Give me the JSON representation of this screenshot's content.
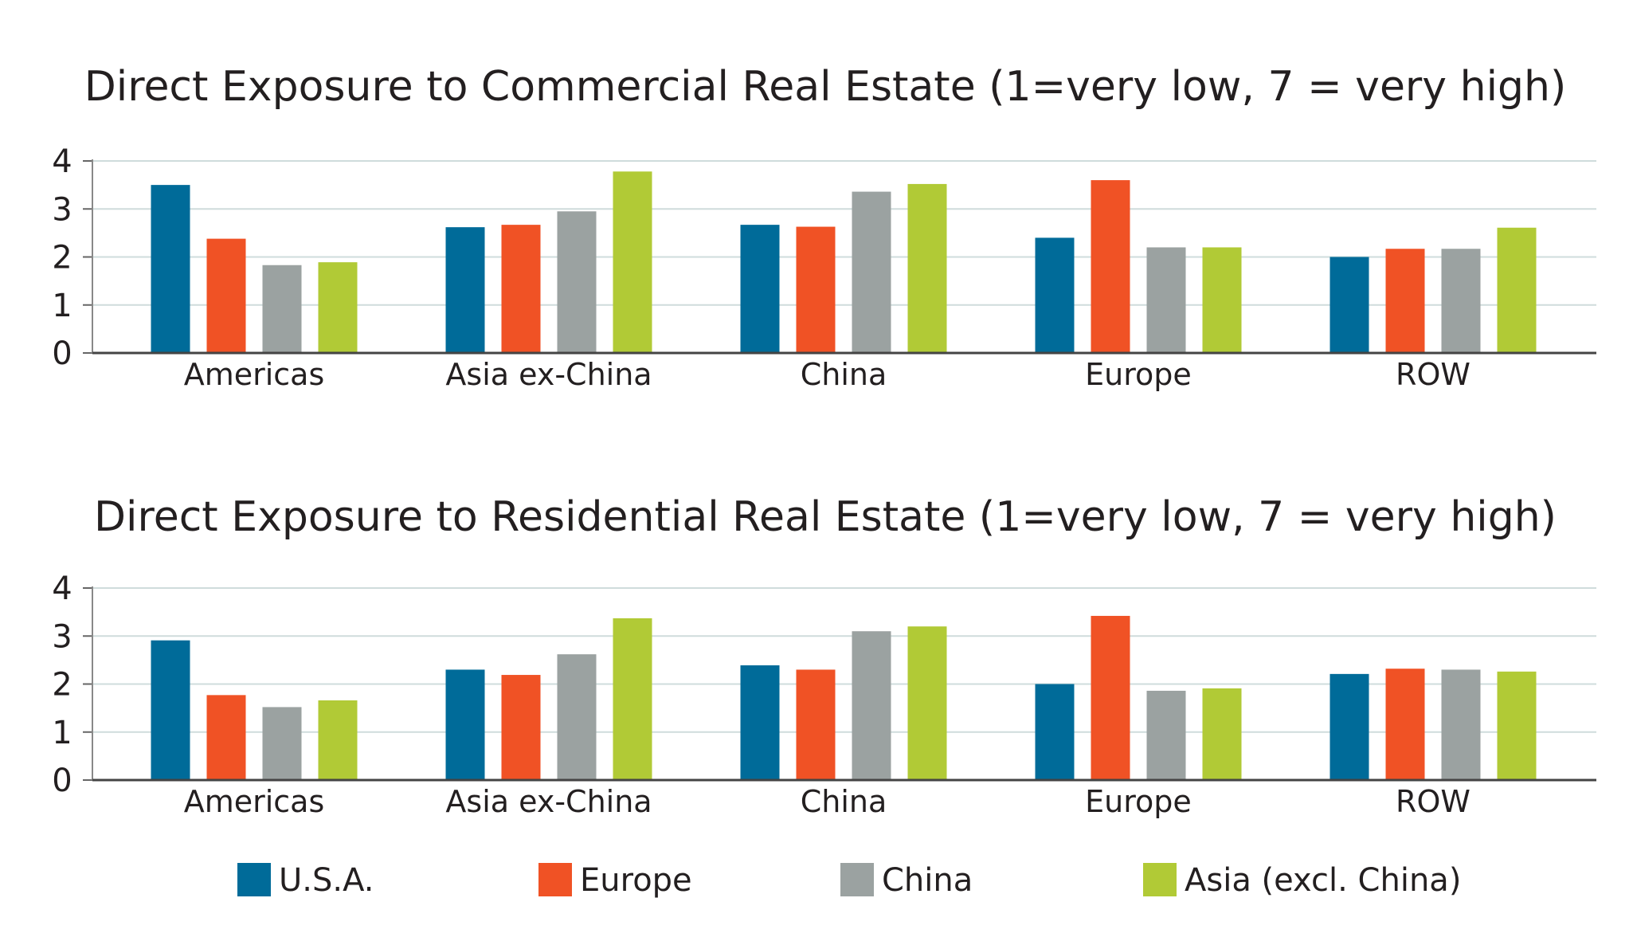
{
  "colors": {
    "U.S.A.": "#006b99",
    "Europe": "#f05225",
    "China": "#9ba2a1",
    "Asia (excl. China)": "#b1ca36"
  },
  "legend": [
    "U.S.A.",
    "Europe",
    "China",
    "Asia (excl. China)"
  ],
  "chart_data": [
    {
      "type": "bar",
      "title": "Direct Exposure to Commercial Real Estate (1=very low, 7 = very high)",
      "categories": [
        "Americas",
        "Asia ex-China",
        "China",
        "Europe",
        "ROW"
      ],
      "ylim": [
        0,
        4
      ],
      "yticks": [
        "0",
        "1",
        "2",
        "3",
        "4"
      ],
      "grid": true,
      "legend_position": "bottom",
      "series": [
        {
          "name": "U.S.A.",
          "values": [
            3.5,
            2.62,
            2.67,
            2.4,
            2.0
          ]
        },
        {
          "name": "Europe",
          "values": [
            2.38,
            2.67,
            2.63,
            3.6,
            2.17
          ]
        },
        {
          "name": "China",
          "values": [
            1.83,
            2.95,
            3.36,
            2.2,
            2.17
          ]
        },
        {
          "name": "Asia (excl. China)",
          "values": [
            1.89,
            3.78,
            3.52,
            2.2,
            2.61
          ]
        }
      ]
    },
    {
      "type": "bar",
      "title": "Direct Exposure to Residential Real Estate (1=very low, 7 = very high)",
      "categories": [
        "Americas",
        "Asia ex-China",
        "China",
        "Europe",
        "ROW"
      ],
      "ylim": [
        0,
        4
      ],
      "yticks": [
        "0",
        "1",
        "2",
        "3",
        "4"
      ],
      "grid": true,
      "legend_position": "bottom",
      "series": [
        {
          "name": "U.S.A.",
          "values": [
            2.91,
            2.3,
            2.39,
            2.0,
            2.21
          ]
        },
        {
          "name": "Europe",
          "values": [
            1.77,
            2.19,
            2.3,
            3.42,
            2.32
          ]
        },
        {
          "name": "China",
          "values": [
            1.52,
            2.62,
            3.1,
            1.86,
            2.3
          ]
        },
        {
          "name": "Asia (excl. China)",
          "values": [
            1.66,
            3.37,
            3.2,
            1.91,
            2.26
          ]
        }
      ]
    }
  ]
}
